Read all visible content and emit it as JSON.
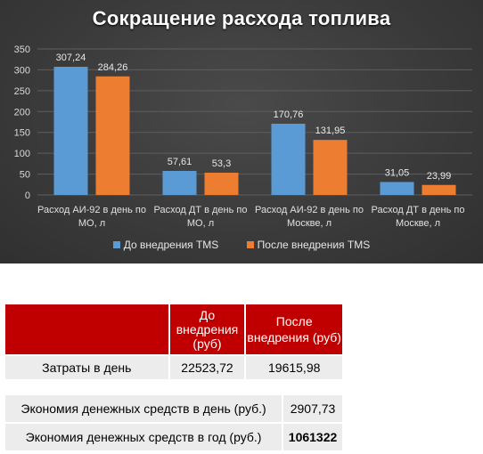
{
  "chart_data": {
    "type": "bar",
    "title": "Сокращение расхода топлива",
    "categories": [
      [
        "Расход АИ-92 в день по",
        "МО, л"
      ],
      [
        "Расход ДТ в день по",
        "МО, л"
      ],
      [
        "Расход АИ-92 в день по",
        "Москве, л"
      ],
      [
        "Расход ДТ в день по",
        "Москве, л"
      ]
    ],
    "series": [
      {
        "name": "До внедрения TMS",
        "values": [
          307.24,
          57.61,
          170.76,
          31.05
        ],
        "labels": [
          "307,24",
          "57,61",
          "170,76",
          "31,05"
        ],
        "color": "#5b9bd5"
      },
      {
        "name": "После внедрения TMS",
        "values": [
          284.26,
          53.3,
          131.95,
          23.99
        ],
        "labels": [
          "284,26",
          "53,3",
          "131,95",
          "23,99"
        ],
        "color": "#ed7d31"
      }
    ],
    "yticks": [
      "0",
      "50",
      "100",
      "150",
      "200",
      "250",
      "300",
      "350"
    ],
    "ylim": [
      0,
      350
    ],
    "grid": true,
    "legend_position": "bottom"
  },
  "table": {
    "header_before": "До внедрения (руб)",
    "header_before_lines": [
      "До",
      "внедрения",
      "(руб)"
    ],
    "header_after_lines": [
      "После",
      "внедрения (руб)"
    ],
    "row_label": "Затраты в день",
    "before_value": "22523,72",
    "after_value": "19615,98"
  },
  "savings": {
    "day_label": "Экономия денежных средств в день (руб.)",
    "day_value": "2907,73",
    "year_label": "Экономия денежных средств в год (руб.)",
    "year_value": "1061322"
  },
  "colors": {
    "header_red": "#c00000",
    "row_gray": "#ececec",
    "chart_background": "#3a3a3a"
  }
}
